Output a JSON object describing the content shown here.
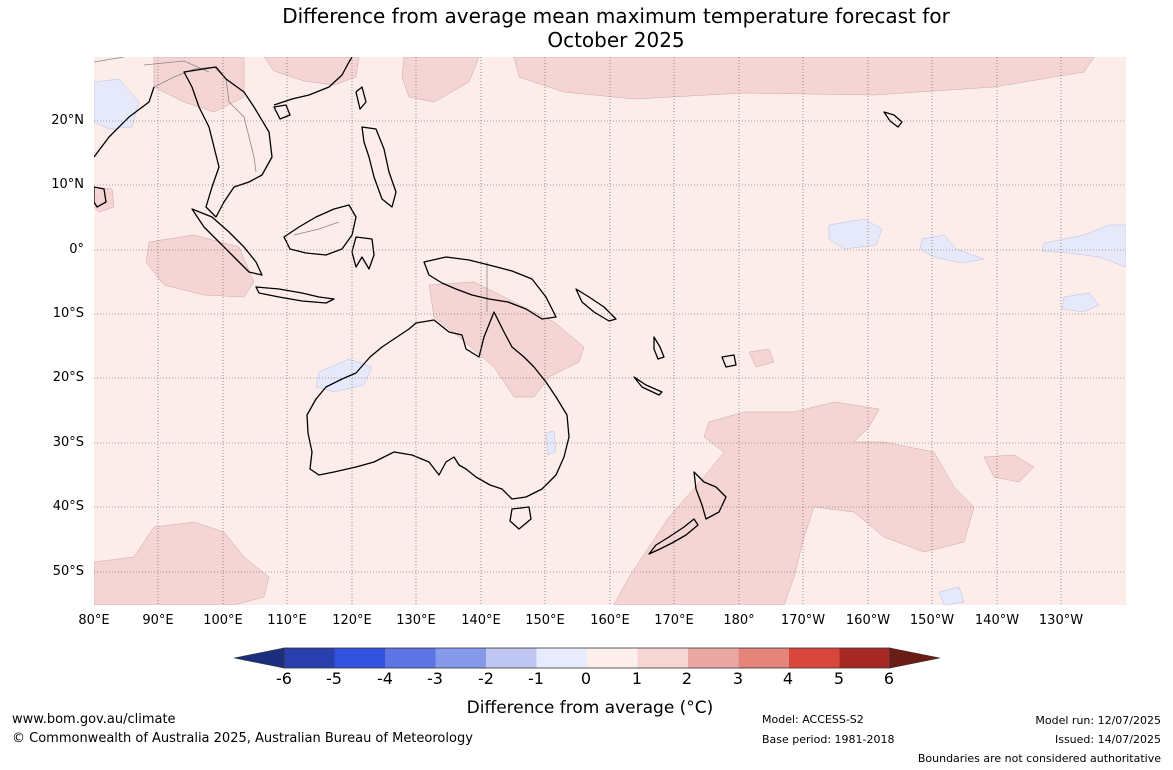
{
  "title": {
    "line1": "Difference from average mean maximum temperature forecast for",
    "line2": "October 2025"
  },
  "map": {
    "lat_labels": [
      "20°N",
      "10°N",
      "0°",
      "10°S",
      "20°S",
      "30°S",
      "40°S",
      "50°S"
    ],
    "lon_labels": [
      "80°E",
      "90°E",
      "100°E",
      "110°E",
      "120°E",
      "130°E",
      "140°E",
      "150°E",
      "160°E",
      "170°E",
      "180°",
      "170°W",
      "160°W",
      "150°W",
      "140°W",
      "130°W"
    ],
    "base_color": "#fcecea",
    "warm_anomaly_color": "#f5d5d3",
    "cool_anomaly_color": "#e6e9fa",
    "coast_color": "#000000",
    "border_color": "#888888"
  },
  "colorbar": {
    "ticks": [
      "-6",
      "-5",
      "-4",
      "-3",
      "-2",
      "-1",
      "0",
      "1",
      "2",
      "3",
      "4",
      "5",
      "6"
    ],
    "colors": [
      "#1b2f7e",
      "#2a3fae",
      "#3251dc",
      "#5c74e4",
      "#8799ea",
      "#bfc7f2",
      "#e8ebfb",
      "#fdefec",
      "#f6d6d3",
      "#eba8a2",
      "#e4847b",
      "#d8473b",
      "#a82824",
      "#6b1c16"
    ],
    "label": "Difference from average (°C)"
  },
  "footer": {
    "website": "www.bom.gov.au/climate",
    "copyright": "© Commonwealth of Australia 2025, Australian Bureau of Meteorology",
    "model": "Model: ACCESS-S2",
    "base_period": "Base period: 1981-2018",
    "model_run": "Model run: 12/07/2025",
    "issued": "Issued: 14/07/2025",
    "disclaimer": "Boundaries are not considered authoritative"
  }
}
